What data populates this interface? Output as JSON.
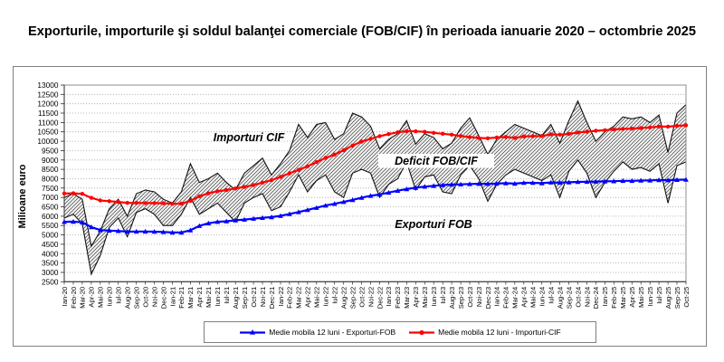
{
  "title": "Exporturile, importurile şi soldul balanţei comerciale (FOB/CIF) în perioada ianuarie 2020 – octombrie 2025",
  "colors": {
    "exports_ma": "#0000ff",
    "imports_ma": "#ff0000",
    "monthly_lines": "#111111",
    "grid": "#a0a0a0"
  },
  "chart_data": {
    "type": "line",
    "title": "Exporturile, importurile şi soldul balanţei comerciale (FOB/CIF) în perioada ianuarie 2020 – octombrie 2025",
    "xlabel": "",
    "ylabel": "Milioane  euro",
    "ylim": [
      2500,
      13000
    ],
    "yticks": [
      2500,
      3000,
      3500,
      4000,
      4500,
      5000,
      5500,
      6000,
      6500,
      7000,
      7500,
      8000,
      8500,
      9000,
      9500,
      10000,
      10500,
      11000,
      11500,
      12000,
      12500,
      13000
    ],
    "grid": "dotted-horizontal",
    "legend_position": "bottom",
    "annotations": {
      "imports": "Importuri CIF",
      "deficit": "Deficit FOB/CIF",
      "exports": "Exporturi FOB"
    },
    "categories": [
      "Ian-20",
      "Feb-20",
      "Mar-20",
      "Apr-20",
      "Mai-20",
      "Iun-20",
      "Iul-20",
      "Aug-20",
      "Sep-20",
      "Oct-20",
      "Noi-20",
      "Dec-20",
      "Ian-21",
      "Feb-21",
      "Mar-21",
      "Apr-21",
      "Mai-21",
      "Iun-21",
      "Iul-21",
      "Aug-21",
      "Sep-21",
      "Oct-21",
      "Noi-21",
      "Dec-21",
      "Ian-22",
      "Feb-22",
      "Mar-22",
      "Apr-22",
      "Mai-22",
      "Iun-22",
      "Iul-22",
      "Aug-22",
      "Sep-22",
      "Oct-22",
      "Noi-22",
      "Dec-22",
      "Ian-23",
      "Feb-23",
      "Mar-23",
      "Apr-23",
      "Mai-23",
      "Iun-23",
      "Iul-23",
      "Aug-23",
      "Sep-23",
      "Oct-23",
      "Noi-23",
      "Dec-23",
      "Ian-24",
      "Feb-24",
      "Mar-24",
      "Apr-24",
      "Mai-24",
      "Iun-24",
      "Iul-24",
      "Aug-24",
      "Sep-24",
      "Oct-24",
      "Noi-24",
      "Dec-24",
      "Ian-25",
      "Feb-25",
      "Mar-25",
      "Apr-25",
      "Mai-25",
      "Iun-25",
      "Iul-25",
      "Aug-25",
      "Sep-25",
      "Oct-25"
    ],
    "series": [
      {
        "name": "Exporturi FOB",
        "kind": "monthly",
        "color": "#111111",
        "values": [
          5900,
          6100,
          5600,
          2900,
          3900,
          5400,
          5900,
          4900,
          6200,
          6400,
          6100,
          5500,
          5500,
          6100,
          7000,
          6100,
          6400,
          6700,
          6200,
          5700,
          6700,
          7000,
          7200,
          6300,
          6500,
          7300,
          8200,
          7300,
          7900,
          8200,
          7300,
          7000,
          8300,
          8500,
          8300,
          7000,
          7700,
          8000,
          8900,
          7400,
          8100,
          8200,
          7300,
          7200,
          8200,
          8700,
          8000,
          6800,
          7700,
          8200,
          8500,
          8300,
          8100,
          7900,
          8200,
          7000,
          8400,
          9000,
          8300,
          7000,
          7800,
          8400,
          8900,
          8500,
          8600,
          8400,
          8800,
          6700,
          8700,
          8900
        ]
      },
      {
        "name": "Importuri CIF",
        "kind": "monthly",
        "color": "#111111",
        "values": [
          7000,
          7200,
          6900,
          4400,
          5200,
          6400,
          6900,
          6000,
          7200,
          7400,
          7300,
          6900,
          6700,
          7300,
          8800,
          7800,
          8000,
          8300,
          7800,
          7400,
          8300,
          8700,
          9100,
          8200,
          8800,
          9500,
          10900,
          10200,
          10900,
          11000,
          10100,
          10400,
          11500,
          11300,
          10800,
          9600,
          10100,
          10400,
          11100,
          9850,
          10400,
          10200,
          9600,
          9900,
          10700,
          11250,
          10300,
          9300,
          10100,
          10500,
          10900,
          10700,
          10500,
          10300,
          10900,
          9900,
          11100,
          12150,
          11000,
          10000,
          10500,
          10800,
          11300,
          11200,
          11300,
          11000,
          11400,
          9400,
          11500,
          11950
        ]
      },
      {
        "name": "Medie mobila 12 luni - Exporturi-FOB",
        "kind": "moving-average",
        "color": "#0000ff",
        "marker": "triangle",
        "values": [
          5700,
          5710,
          5670,
          5420,
          5260,
          5230,
          5210,
          5170,
          5180,
          5180,
          5170,
          5160,
          5130,
          5130,
          5250,
          5480,
          5620,
          5700,
          5730,
          5780,
          5820,
          5870,
          5910,
          5950,
          6020,
          6120,
          6220,
          6330,
          6450,
          6570,
          6660,
          6760,
          6870,
          6990,
          7090,
          7160,
          7260,
          7360,
          7450,
          7520,
          7580,
          7620,
          7660,
          7690,
          7700,
          7720,
          7730,
          7730,
          7740,
          7760,
          7740,
          7780,
          7780,
          7760,
          7800,
          7790,
          7810,
          7830,
          7840,
          7850,
          7860,
          7870,
          7890,
          7890,
          7900,
          7910,
          7930,
          7920,
          7940,
          7950
        ]
      },
      {
        "name": "Medie mobila 12 luni - Importuri-CIF",
        "kind": "moving-average",
        "color": "#ff0000",
        "marker": "circle",
        "values": [
          7210,
          7220,
          7190,
          6980,
          6840,
          6800,
          6760,
          6710,
          6710,
          6700,
          6700,
          6690,
          6660,
          6670,
          6820,
          7060,
          7220,
          7330,
          7390,
          7480,
          7560,
          7660,
          7790,
          7920,
          8100,
          8290,
          8470,
          8660,
          8890,
          9110,
          9290,
          9520,
          9770,
          9980,
          10130,
          10270,
          10380,
          10480,
          10540,
          10530,
          10500,
          10450,
          10400,
          10350,
          10280,
          10220,
          10180,
          10160,
          10200,
          10230,
          10180,
          10260,
          10270,
          10280,
          10370,
          10350,
          10390,
          10470,
          10510,
          10560,
          10590,
          10630,
          10660,
          10670,
          10710,
          10740,
          10780,
          10780,
          10820,
          10850
        ]
      }
    ],
    "band": {
      "between": [
        "Exporturi FOB",
        "Importuri CIF"
      ],
      "fill": "diagonal-hatch",
      "meaning": "Deficit FOB/CIF"
    }
  }
}
